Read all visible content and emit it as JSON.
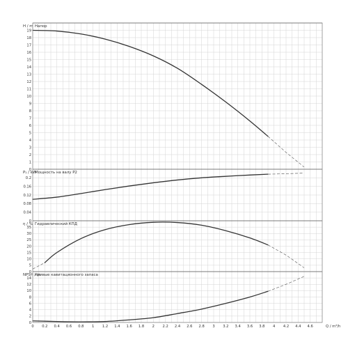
{
  "chart_data": {
    "type": "line",
    "x_axis": {
      "label": "Q / m³/h",
      "range": [
        0,
        4.8
      ],
      "ticks": [
        "0",
        "0.2",
        "0.4",
        "0.6",
        "0.8",
        "1",
        "1.2",
        "1.4",
        "1.6",
        "1.8",
        "2",
        "2.2",
        "2.4",
        "2.6",
        "2.8",
        "3",
        "3.2",
        "3.4",
        "3.6",
        "3.8",
        "4",
        "4.2",
        "4.4",
        "4.6"
      ]
    },
    "panels": [
      {
        "id": "head",
        "ylabel": "H / m",
        "title": "Напор",
        "ylim": [
          0,
          20
        ],
        "yticks": [
          "0",
          "1",
          "2",
          "3",
          "4",
          "5",
          "6",
          "7",
          "8",
          "9",
          "10",
          "11",
          "12",
          "13",
          "14",
          "15",
          "16",
          "17",
          "18",
          "19"
        ],
        "series": [
          {
            "style": "solid",
            "x": [
              0,
              0.4,
              0.8,
              1.2,
              1.6,
              2.0,
              2.4,
              2.8,
              3.2,
              3.6,
              3.9
            ],
            "y": [
              19,
              18.9,
              18.5,
              17.8,
              16.8,
              15.5,
              13.8,
              11.6,
              9.2,
              6.6,
              4.5
            ]
          },
          {
            "style": "dashed",
            "x": [
              3.9,
              4.2,
              4.5
            ],
            "y": [
              4.5,
              2.3,
              0.3
            ]
          }
        ]
      },
      {
        "id": "power",
        "ylabel": "P₁ / kW",
        "title": "Мощность на валу P2",
        "ylim": [
          0,
          0.24
        ],
        "yticks": [
          "0",
          "0.04",
          "0.08",
          "0.12",
          "0.16",
          "0.2"
        ],
        "series": [
          {
            "style": "solid",
            "x": [
              0,
              0.4,
              0.8,
              1.2,
              1.6,
              2.0,
              2.4,
              2.8,
              3.2,
              3.6,
              3.9
            ],
            "y": [
              0.1,
              0.11,
              0.127,
              0.145,
              0.162,
              0.177,
              0.19,
              0.2,
              0.207,
              0.213,
              0.217
            ]
          },
          {
            "style": "dashed",
            "x": [
              3.9,
              4.2,
              4.5
            ],
            "y": [
              0.217,
              0.219,
              0.222
            ]
          }
        ]
      },
      {
        "id": "efficiency",
        "ylabel": "η / %",
        "title": "Гидравлический КПД",
        "ylim": [
          0,
          40
        ],
        "yticks": [
          "0",
          "5",
          "10",
          "15",
          "20",
          "25",
          "30",
          "35"
        ],
        "series": [
          {
            "style": "dashed",
            "x": [
              0,
              0.2
            ],
            "y": [
              2,
              7
            ]
          },
          {
            "style": "solid",
            "x": [
              0.2,
              0.4,
              0.8,
              1.2,
              1.6,
              2.0,
              2.4,
              2.8,
              3.2,
              3.6,
              3.9
            ],
            "y": [
              7,
              15,
              26,
              33,
              37,
              38.8,
              38.6,
              36.5,
              32.2,
              26.5,
              21
            ]
          },
          {
            "style": "dashed",
            "x": [
              3.9,
              4.2,
              4.5
            ],
            "y": [
              21,
              13,
              3
            ]
          }
        ]
      },
      {
        "id": "npsh",
        "ylabel": "NPSH / m",
        "title": "Кривые кавитационного запаса",
        "ylim": [
          0,
          16
        ],
        "yticks": [
          "0",
          "2",
          "4",
          "6",
          "8",
          "10",
          "12",
          "14"
        ],
        "series": [
          {
            "style": "solid",
            "x": [
              0,
              0.4,
              0.8,
              1.2,
              1.6,
              2.0,
              2.4,
              2.8,
              3.2,
              3.6,
              3.9
            ],
            "y": [
              0.5,
              0.3,
              0.2,
              0.3,
              0.8,
              1.5,
              2.8,
              4.2,
              6.0,
              8.0,
              9.8
            ]
          },
          {
            "style": "dashed",
            "x": [
              3.9,
              4.2,
              4.5
            ],
            "y": [
              9.8,
              12.0,
              14.5
            ]
          }
        ]
      }
    ]
  }
}
